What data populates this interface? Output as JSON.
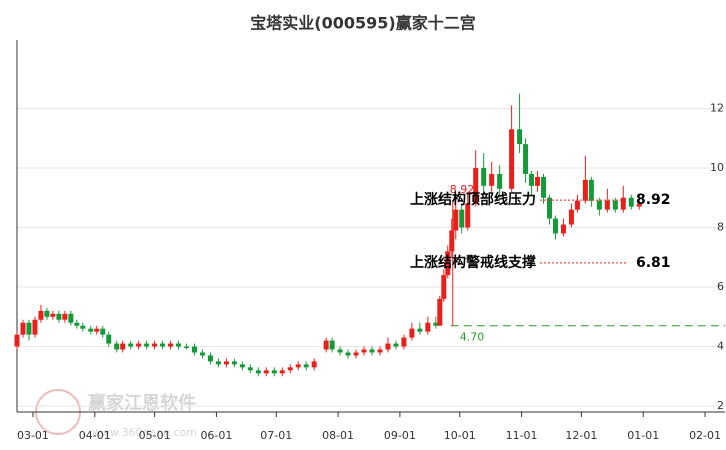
{
  "chart_data": {
    "type": "candlestick",
    "title": "宝塔实业(000595)赢家十二宫",
    "colors": {
      "up": "#e8201c",
      "down": "#159a3a"
    },
    "xlim": [
      -8,
      347
    ],
    "xticks": [
      {
        "value": 0,
        "label": "03-01"
      },
      {
        "value": 31,
        "label": "04-01"
      },
      {
        "value": 61,
        "label": "05-01"
      },
      {
        "value": 92,
        "label": "06-01"
      },
      {
        "value": 122,
        "label": "07-01"
      },
      {
        "value": 153,
        "label": "08-01"
      },
      {
        "value": 184,
        "label": "09-01"
      },
      {
        "value": 214,
        "label": "10-01"
      },
      {
        "value": 245,
        "label": "11-01"
      },
      {
        "value": 275,
        "label": "12-01"
      },
      {
        "value": 306,
        "label": "01-01"
      },
      {
        "value": 337,
        "label": "02-01"
      }
    ],
    "ylim": [
      1.8,
      14.3
    ],
    "yticks": [
      2,
      4,
      6,
      8,
      10,
      12
    ],
    "grid": true,
    "x": [
      -8,
      -5,
      -2,
      1,
      4,
      7,
      10,
      13,
      16,
      19,
      22,
      25,
      29,
      32,
      35,
      38,
      42,
      45,
      49,
      53,
      57,
      61,
      65,
      69,
      73,
      77,
      81,
      85,
      89,
      93,
      97,
      101,
      105,
      109,
      113,
      117,
      121,
      125,
      129,
      133,
      137,
      141,
      147,
      150,
      154,
      158,
      162,
      166,
      170,
      174,
      178,
      182,
      186,
      190,
      194,
      198,
      202,
      204,
      206,
      208,
      210,
      212,
      215,
      218,
      222,
      226,
      230,
      234,
      240,
      244,
      247,
      250,
      253,
      256,
      259,
      262,
      266,
      270,
      273,
      277,
      280,
      284,
      288,
      292,
      296,
      300,
      304
    ],
    "open": [
      4.0,
      4.4,
      4.8,
      4.4,
      4.9,
      5.2,
      5.0,
      5.1,
      4.9,
      5.1,
      4.8,
      4.7,
      4.6,
      4.5,
      4.6,
      4.4,
      4.1,
      3.9,
      4.1,
      4.0,
      4.1,
      4.0,
      4.1,
      4.0,
      4.1,
      4.0,
      4.0,
      3.8,
      3.7,
      3.5,
      3.4,
      3.5,
      3.4,
      3.3,
      3.2,
      3.1,
      3.2,
      3.1,
      3.2,
      3.3,
      3.4,
      3.3,
      3.9,
      4.2,
      3.9,
      3.8,
      3.7,
      3.8,
      3.9,
      3.8,
      3.9,
      4.1,
      4.0,
      4.3,
      4.6,
      4.5,
      4.8,
      4.7,
      5.6,
      6.4,
      7.2,
      7.9,
      8.6,
      8.0,
      8.8,
      10.0,
      9.4,
      9.8,
      9.3,
      11.3,
      10.8,
      9.8,
      9.4,
      9.7,
      9.0,
      8.3,
      7.8,
      8.1,
      8.6,
      8.9,
      9.6,
      8.9,
      8.6,
      8.9,
      8.6,
      9.0,
      8.7
    ],
    "high": [
      4.5,
      4.9,
      4.9,
      5.0,
      5.4,
      5.3,
      5.2,
      5.2,
      5.2,
      5.2,
      4.9,
      4.8,
      4.7,
      4.7,
      4.7,
      4.5,
      4.2,
      4.2,
      4.2,
      4.2,
      4.2,
      4.2,
      4.2,
      4.2,
      4.2,
      4.1,
      4.1,
      3.9,
      3.8,
      3.6,
      3.6,
      3.6,
      3.5,
      3.4,
      3.3,
      3.3,
      3.3,
      3.3,
      3.4,
      3.5,
      3.5,
      3.6,
      4.3,
      4.3,
      4.0,
      3.9,
      3.9,
      4.0,
      4.0,
      4.0,
      4.3,
      4.2,
      4.4,
      4.8,
      4.8,
      5.0,
      5.0,
      5.7,
      6.6,
      7.4,
      8.3,
      8.92,
      8.8,
      9.2,
      10.6,
      10.5,
      10.2,
      10.1,
      12.1,
      12.5,
      11.0,
      9.9,
      9.9,
      9.8,
      9.1,
      8.4,
      8.3,
      8.8,
      9.1,
      10.4,
      9.7,
      9.0,
      9.3,
      9.0,
      9.4,
      9.1,
      9.0
    ],
    "low": [
      3.9,
      4.3,
      4.2,
      4.3,
      4.8,
      4.9,
      4.9,
      4.8,
      4.8,
      4.7,
      4.6,
      4.5,
      4.4,
      4.4,
      4.3,
      4.0,
      3.8,
      3.8,
      3.9,
      3.9,
      3.9,
      3.9,
      3.9,
      3.9,
      3.9,
      3.9,
      3.7,
      3.6,
      3.4,
      3.3,
      3.3,
      3.3,
      3.2,
      3.1,
      3.0,
      3.0,
      3.0,
      3.0,
      3.1,
      3.2,
      3.2,
      3.2,
      3.8,
      3.8,
      3.7,
      3.6,
      3.6,
      3.7,
      3.7,
      3.7,
      3.8,
      3.9,
      3.9,
      4.2,
      4.4,
      4.4,
      4.6,
      4.7,
      5.5,
      6.3,
      7.0,
      7.6,
      7.8,
      7.9,
      8.7,
      9.1,
      9.2,
      9.0,
      9.2,
      10.5,
      9.5,
      9.1,
      9.2,
      8.8,
      8.1,
      7.6,
      7.7,
      8.0,
      8.5,
      8.8,
      8.7,
      8.4,
      8.5,
      8.5,
      8.5,
      8.6,
      8.6
    ],
    "close": [
      4.4,
      4.8,
      4.4,
      4.9,
      5.2,
      5.0,
      5.1,
      4.9,
      5.1,
      4.8,
      4.7,
      4.6,
      4.5,
      4.6,
      4.4,
      4.1,
      3.9,
      4.1,
      4.0,
      4.1,
      4.0,
      4.1,
      4.0,
      4.1,
      4.0,
      3.95,
      3.8,
      3.7,
      3.5,
      3.4,
      3.5,
      3.4,
      3.3,
      3.2,
      3.1,
      3.2,
      3.1,
      3.2,
      3.3,
      3.4,
      3.3,
      3.5,
      4.2,
      3.9,
      3.8,
      3.7,
      3.8,
      3.9,
      3.8,
      3.9,
      4.1,
      4.0,
      4.3,
      4.6,
      4.5,
      4.8,
      4.7,
      5.6,
      6.4,
      7.2,
      7.9,
      8.6,
      8.0,
      8.8,
      10.0,
      9.4,
      9.8,
      9.3,
      11.3,
      10.8,
      9.8,
      9.4,
      9.7,
      9.0,
      8.3,
      7.8,
      8.1,
      8.6,
      8.9,
      9.6,
      8.9,
      8.6,
      8.9,
      8.6,
      9.0,
      8.7,
      8.8
    ],
    "resistance": {
      "label": "上涨结构顶部线压力",
      "value": 8.92,
      "value_label": "8.92"
    },
    "support": {
      "label": "上涨结构警戒线支撑",
      "value": 6.81,
      "value_label": "6.81"
    },
    "high_marker": {
      "value": 8.92,
      "label": "8.92"
    },
    "low_marker": {
      "value": 4.7,
      "label": "4.70"
    },
    "watermark": {
      "name": "赢家江恩软件",
      "url": "www.360gann.com"
    }
  }
}
